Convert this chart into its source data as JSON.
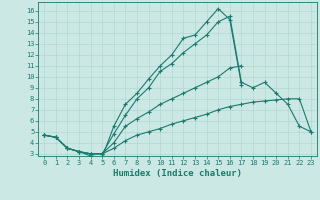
{
  "xlabel": "Humidex (Indice chaleur)",
  "ylabel": "",
  "xlim": [
    -0.5,
    23.5
  ],
  "ylim": [
    2.8,
    16.8
  ],
  "yticks": [
    3,
    4,
    5,
    6,
    7,
    8,
    9,
    10,
    11,
    12,
    13,
    14,
    15,
    16
  ],
  "xticks": [
    0,
    1,
    2,
    3,
    4,
    5,
    6,
    7,
    8,
    9,
    10,
    11,
    12,
    13,
    14,
    15,
    16,
    17,
    18,
    19,
    20,
    21,
    22,
    23
  ],
  "background_color": "#cce8e4",
  "line_color": "#1a7a6e",
  "grid_color": "#b0d8d0",
  "lines": [
    {
      "x": [
        0,
        1,
        2,
        3,
        4,
        5,
        6,
        7,
        8,
        9,
        10,
        11,
        12,
        13,
        14,
        15,
        16,
        17,
        18,
        19,
        20,
        21,
        22,
        23
      ],
      "y": [
        4.7,
        4.5,
        3.5,
        3.2,
        2.8,
        2.7,
        5.5,
        7.5,
        8.5,
        9.8,
        11.0,
        12.0,
        13.5,
        13.8,
        15.0,
        16.2,
        15.2,
        9.3,
        null,
        null,
        null,
        null,
        null,
        null
      ]
    },
    {
      "x": [
        0,
        1,
        2,
        3,
        4,
        5,
        6,
        7,
        8,
        9,
        10,
        11,
        12,
        13,
        14,
        15,
        16,
        17,
        18,
        19,
        20,
        21,
        22,
        23
      ],
      "y": [
        4.7,
        4.5,
        3.5,
        3.2,
        3.0,
        3.0,
        4.8,
        6.5,
        8.0,
        9.0,
        10.5,
        11.2,
        12.2,
        13.0,
        13.8,
        15.0,
        15.5,
        9.5,
        9.0,
        9.5,
        8.5,
        7.5,
        5.5,
        5.0
      ]
    },
    {
      "x": [
        0,
        1,
        2,
        3,
        4,
        5,
        6,
        7,
        8,
        9,
        10,
        11,
        12,
        13,
        14,
        15,
        16,
        17,
        18,
        19,
        20,
        21,
        22,
        23
      ],
      "y": [
        4.7,
        4.5,
        3.5,
        3.2,
        3.0,
        3.0,
        4.0,
        5.5,
        6.2,
        6.8,
        7.5,
        8.0,
        8.5,
        9.0,
        9.5,
        10.0,
        10.8,
        11.0,
        null,
        null,
        null,
        null,
        null,
        null
      ]
    },
    {
      "x": [
        0,
        1,
        2,
        3,
        4,
        5,
        6,
        7,
        8,
        9,
        10,
        11,
        12,
        13,
        14,
        15,
        16,
        17,
        18,
        19,
        20,
        21,
        22,
        23
      ],
      "y": [
        4.7,
        4.5,
        3.5,
        3.2,
        3.0,
        3.0,
        3.5,
        4.2,
        4.7,
        5.0,
        5.3,
        5.7,
        6.0,
        6.3,
        6.6,
        7.0,
        7.3,
        7.5,
        7.7,
        7.8,
        7.9,
        8.0,
        8.0,
        5.0
      ]
    }
  ]
}
